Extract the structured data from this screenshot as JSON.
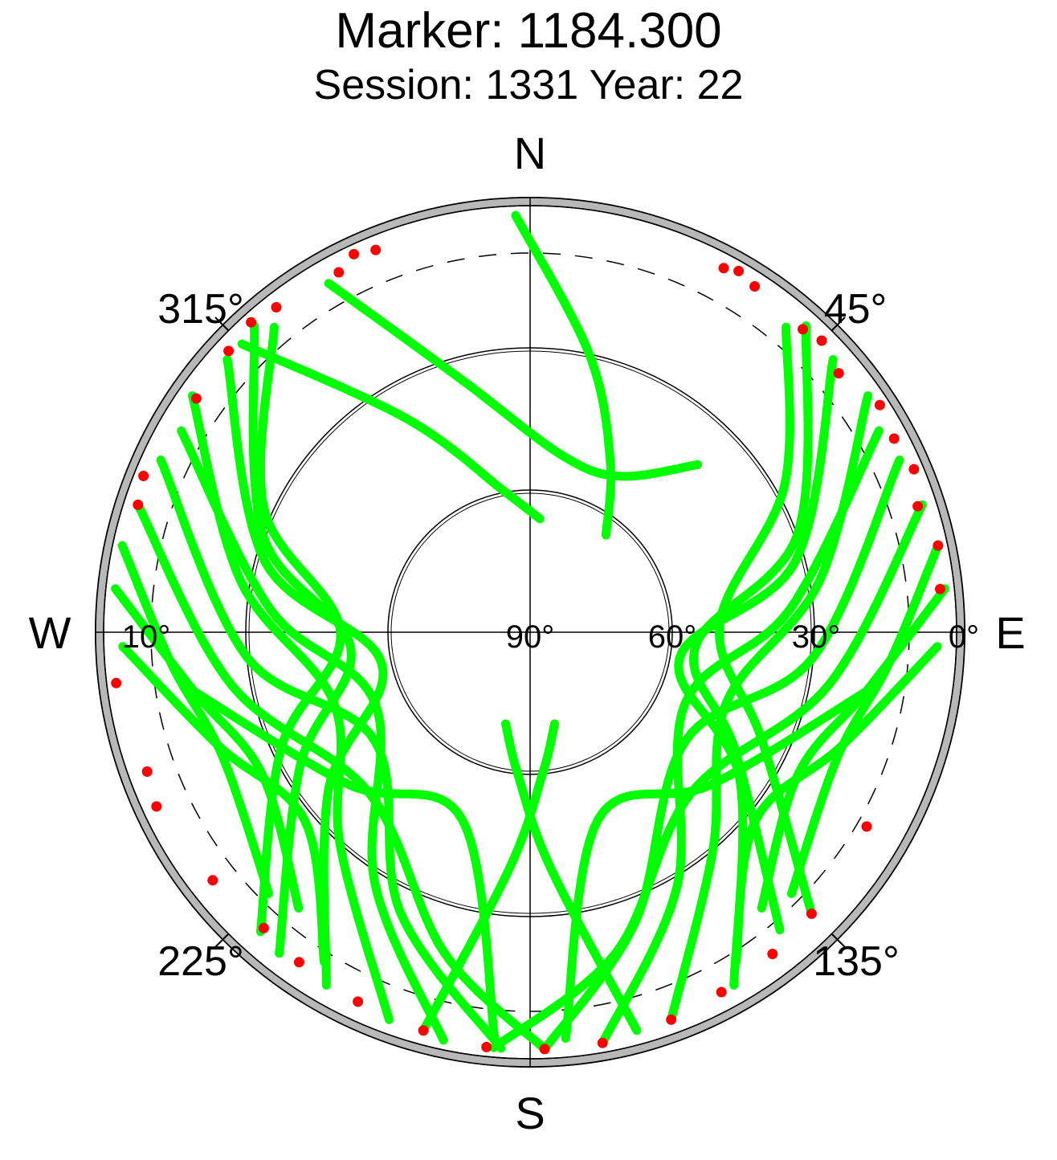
{
  "title": "Marker: 1184.300",
  "subtitle": "Session: 1331 Year: 22",
  "colors": {
    "track": "#00ff00",
    "low_elevation": "#ff0000",
    "obstruction": "#b8b8b8",
    "axis": "#000000"
  },
  "chart_data": {
    "type": "scatter",
    "projection": "polar skyplot (azimuth clockwise from north, elevation radial)",
    "compass": {
      "north": "N",
      "east": "E",
      "south": "S",
      "west": "W"
    },
    "azimuth_labels": [
      "45°",
      "135°",
      "225°",
      "315°"
    ],
    "elevation_labels": [
      "0°",
      "10°",
      "30°",
      "60°",
      "90°"
    ],
    "elevation_circles": [
      0,
      30,
      60
    ],
    "cutoff_elevation": 10,
    "grid": true,
    "series": [
      {
        "color": "#00ff00",
        "tracks": [
          {
            "az": [
              358,
              12,
              25,
              38
            ],
            "el": [
              2,
              30,
              50,
              64
            ]
          },
          {
            "az": [
              330,
              345,
              10,
              30,
              45
            ],
            "el": [
              5,
              35,
              52,
              52,
              40
            ]
          },
          {
            "az": [
              315,
              330,
              350,
              5
            ],
            "el": [
              4,
              38,
              60,
              66
            ]
          },
          {
            "az": [
              42,
              70,
              95,
              120,
              140
            ],
            "el": [
              3,
              30,
              55,
              40,
              8
            ]
          },
          {
            "az": [
              40,
              60,
              88,
              115,
              135
            ],
            "el": [
              6,
              28,
              50,
              36,
              6
            ]
          },
          {
            "az": [
              48,
              75,
              100,
              125,
              150
            ],
            "el": [
              4,
              32,
              58,
              36,
              4
            ]
          },
          {
            "az": [
              55,
              80,
              110,
              140,
              160
            ],
            "el": [
              3,
              28,
              46,
              30,
              3
            ]
          },
          {
            "az": [
              60,
              85,
              115,
              150,
              170
            ],
            "el": [
              5,
              35,
              54,
              28,
              2
            ]
          },
          {
            "az": [
              65,
              95,
              125,
              160,
              178
            ],
            "el": [
              4,
              30,
              50,
              25,
              2
            ]
          },
          {
            "az": [
              72,
              100,
              135,
              165,
              185
            ],
            "el": [
              3,
              26,
              42,
              20,
              2
            ]
          },
          {
            "az": [
              78,
              95,
              112,
              135
            ],
            "el": [
              2,
              14,
              20,
              12
            ]
          },
          {
            "az": [
              84,
              100,
              118,
              140
            ],
            "el": [
              2,
              18,
              26,
              14
            ]
          },
          {
            "az": [
              92,
              110,
              130,
              148
            ],
            "el": [
              4,
              20,
              28,
              8
            ]
          },
          {
            "az": [
              318,
              290,
              265,
              240,
              218
            ],
            "el": [
              3,
              30,
              52,
              34,
              4
            ]
          },
          {
            "az": [
              320,
              295,
              270,
              245,
              222
            ],
            "el": [
              6,
              28,
              50,
              32,
              5
            ]
          },
          {
            "az": [
              312,
              285,
              258,
              232,
              210
            ],
            "el": [
              4,
              32,
              58,
              36,
              4
            ]
          },
          {
            "az": [
              305,
              280,
              250,
              222,
              200
            ],
            "el": [
              3,
              28,
              46,
              30,
              3
            ]
          },
          {
            "az": [
              300,
              275,
              245,
              212,
              192
            ],
            "el": [
              5,
              35,
              54,
              28,
              2
            ]
          },
          {
            "az": [
              295,
              265,
              235,
              205,
              184
            ],
            "el": [
              4,
              30,
              50,
              25,
              2
            ]
          },
          {
            "az": [
              288,
              260,
              225,
              195,
              178
            ],
            "el": [
              3,
              26,
              42,
              20,
              2
            ]
          },
          {
            "az": [
              282,
              265,
              248,
              225
            ],
            "el": [
              2,
              14,
              20,
              12
            ]
          },
          {
            "az": [
              276,
              260,
              242,
              220
            ],
            "el": [
              2,
              18,
              26,
              14
            ]
          },
          {
            "az": [
              268,
              250,
              230,
              212
            ],
            "el": [
              4,
              20,
              28,
              8
            ]
          },
          {
            "az": [
              100,
              130,
              160,
              175
            ],
            "el": [
              18,
              40,
              48,
              4
            ]
          },
          {
            "az": [
              260,
              230,
              200,
              185
            ],
            "el": [
              18,
              40,
              48,
              4
            ]
          },
          {
            "az": [
              165,
              175,
              185,
              195
            ],
            "el": [
              3,
              40,
              60,
              70
            ]
          },
          {
            "az": [
              195,
              185,
              175,
              165
            ],
            "el": [
              3,
              40,
              60,
              70
            ]
          }
        ]
      },
      {
        "color": "#ff0000",
        "points": [
          {
            "az": 28,
            "el": 3
          },
          {
            "az": 30,
            "el": 2
          },
          {
            "az": 33,
            "el": 3
          },
          {
            "az": 42,
            "el": 4
          },
          {
            "az": 45,
            "el": 3
          },
          {
            "az": 50,
            "el": 5
          },
          {
            "az": 57,
            "el": 2
          },
          {
            "az": 62,
            "el": 3
          },
          {
            "az": 67,
            "el": 2
          },
          {
            "az": 72,
            "el": 4
          },
          {
            "az": 78,
            "el": 2
          },
          {
            "az": 84,
            "el": 3
          },
          {
            "az": 120,
            "el": 8
          },
          {
            "az": 135,
            "el": 6
          },
          {
            "az": 143,
            "el": 5
          },
          {
            "az": 152,
            "el": 4
          },
          {
            "az": 160,
            "el": 3
          },
          {
            "az": 170,
            "el": 2
          },
          {
            "az": 178,
            "el": 2
          },
          {
            "az": 186,
            "el": 2
          },
          {
            "az": 195,
            "el": 3
          },
          {
            "az": 205,
            "el": 4
          },
          {
            "az": 215,
            "el": 5
          },
          {
            "az": 222,
            "el": 6
          },
          {
            "az": 232,
            "el": 5
          },
          {
            "az": 245,
            "el": 3
          },
          {
            "az": 250,
            "el": 4
          },
          {
            "az": 263,
            "el": 2
          },
          {
            "az": 288,
            "el": 3
          },
          {
            "az": 292,
            "el": 2
          },
          {
            "az": 305,
            "el": 4
          },
          {
            "az": 313,
            "el": 3
          },
          {
            "az": 318,
            "el": 2
          },
          {
            "az": 322,
            "el": 3
          },
          {
            "az": 332,
            "el": 4
          },
          {
            "az": 335,
            "el": 2
          },
          {
            "az": 338,
            "el": 3
          }
        ]
      }
    ]
  }
}
